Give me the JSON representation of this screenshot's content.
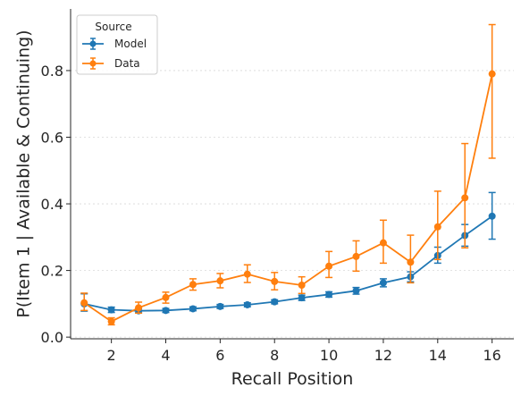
{
  "chart_data": {
    "type": "line",
    "xlabel": "Recall Position",
    "ylabel": "P(Item 1 | Available & Continuing)",
    "xlim": [
      0.5,
      16.8
    ],
    "ylim": [
      -0.005,
      0.985
    ],
    "xticks": [
      2,
      4,
      6,
      8,
      10,
      12,
      14,
      16
    ],
    "xtick_labels": [
      "2",
      "4",
      "6",
      "8",
      "10",
      "12",
      "14",
      "16"
    ],
    "yticks": [
      0.0,
      0.2,
      0.4,
      0.6,
      0.8
    ],
    "ytick_labels": [
      "0.0",
      "0.2",
      "0.4",
      "0.6",
      "0.8"
    ],
    "grid": "horizontal dotted",
    "legend": {
      "title": "Source",
      "placement": "top-left"
    },
    "x": [
      1,
      2,
      3,
      4,
      5,
      6,
      7,
      8,
      9,
      10,
      11,
      12,
      13,
      14,
      15,
      16
    ],
    "series": [
      {
        "name": "Model",
        "color": "#1f77b4",
        "values": [
          0.1,
          0.082,
          0.079,
          0.08,
          0.085,
          0.092,
          0.097,
          0.106,
          0.118,
          0.128,
          0.139,
          0.163,
          0.181,
          0.245,
          0.305,
          0.363
        ],
        "err_low": [
          0.078,
          0.074,
          0.073,
          0.074,
          0.079,
          0.086,
          0.091,
          0.1,
          0.11,
          0.12,
          0.129,
          0.151,
          0.166,
          0.222,
          0.273,
          0.294
        ],
        "err_high": [
          0.13,
          0.09,
          0.085,
          0.086,
          0.091,
          0.098,
          0.103,
          0.112,
          0.126,
          0.136,
          0.149,
          0.175,
          0.196,
          0.27,
          0.338,
          0.434
        ]
      },
      {
        "name": "Data",
        "color": "#ff7f0e",
        "values": [
          0.103,
          0.047,
          0.088,
          0.119,
          0.158,
          0.169,
          0.189,
          0.167,
          0.156,
          0.213,
          0.242,
          0.283,
          0.225,
          0.331,
          0.418,
          0.79
        ],
        "err_low": [
          0.08,
          0.037,
          0.072,
          0.102,
          0.141,
          0.148,
          0.164,
          0.142,
          0.131,
          0.179,
          0.198,
          0.222,
          0.163,
          0.233,
          0.268,
          0.537
        ],
        "err_high": [
          0.132,
          0.058,
          0.105,
          0.135,
          0.175,
          0.191,
          0.217,
          0.194,
          0.181,
          0.257,
          0.289,
          0.351,
          0.306,
          0.438,
          0.581,
          0.938
        ]
      }
    ]
  }
}
